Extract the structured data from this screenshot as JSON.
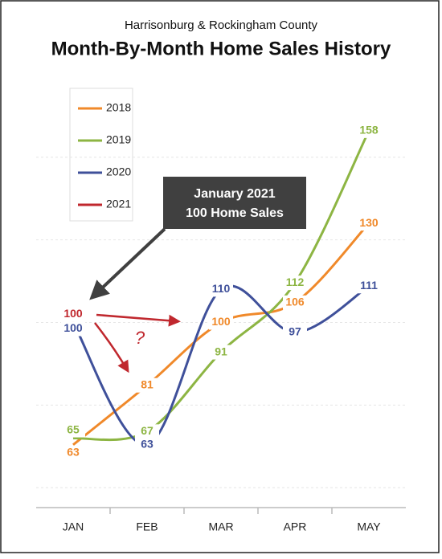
{
  "chart_data": {
    "type": "line",
    "title": "Month-By-Month Home Sales History",
    "subtitle": "Harrisonburg & Rockingham County",
    "categories": [
      "JAN",
      "FEB",
      "MAR",
      "APR",
      "MAY"
    ],
    "series": [
      {
        "name": "2018",
        "color": "#f0892a",
        "values": [
          63,
          81,
          100,
          106,
          130
        ]
      },
      {
        "name": "2019",
        "color": "#8db543",
        "values": [
          65,
          67,
          91,
          112,
          158
        ]
      },
      {
        "name": "2020",
        "color": "#3f509a",
        "values": [
          100,
          63,
          110,
          97,
          111
        ]
      },
      {
        "name": "2021",
        "color": "#c0282e",
        "values": [
          100,
          null,
          null,
          null,
          null
        ]
      }
    ],
    "ylim": [
      44,
      174
    ],
    "yticks": [
      50,
      75,
      100,
      125,
      150
    ],
    "grid": true,
    "legend": "upper left",
    "annotations": [
      "January 2021",
      "100 Home Sales",
      "?"
    ]
  }
}
